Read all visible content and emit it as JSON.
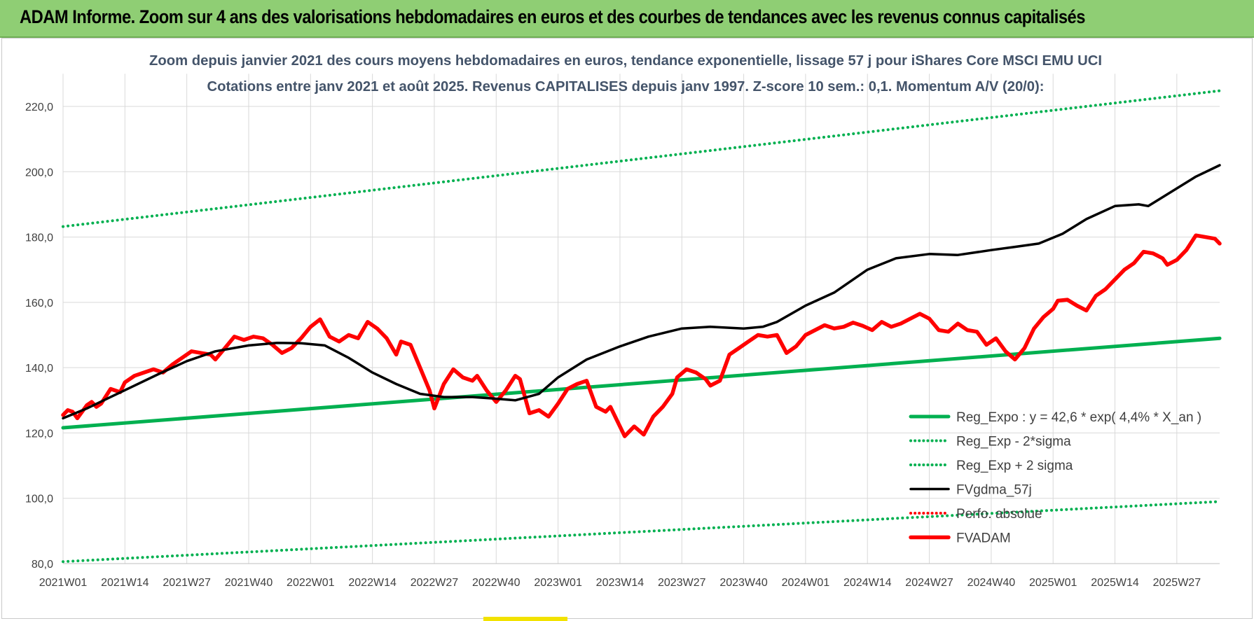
{
  "header": {
    "title": "ADAM Informe. Zoom sur 4 ans des valorisations hebdomadaires en euros et des courbes de tendances avec les revenus connus capitalisés"
  },
  "colors": {
    "header_bg": "#8fce74",
    "trend_green": "#00b050",
    "price_red": "#ff0000",
    "smooth_black": "#000000",
    "title_text": "#44546a"
  },
  "chart_data": {
    "type": "line",
    "title": "Zoom depuis janvier 2021 des cours moyens hebdomadaires en euros, tendance exponentielle, lissage 57 j pour iShares Core MSCI EMU UCI",
    "subtitle": "Cotations entre janv 2021 et août 2025. Revenus CAPITALISES depuis janv 1997. Z-score 10 sem.: 0,1. Momentum A/V (20/0):",
    "ylim": [
      80,
      230
    ],
    "yticks": [
      "80,0",
      "100,0",
      "120,0",
      "140,0",
      "160,0",
      "180,0",
      "200,0",
      "220,0"
    ],
    "ytick_values": [
      80,
      100,
      120,
      140,
      160,
      180,
      200,
      220
    ],
    "xticks": [
      "2021W01",
      "2021W14",
      "2021W27",
      "2021W40",
      "2022W01",
      "2022W14",
      "2022W27",
      "2022W40",
      "2023W01",
      "2023W14",
      "2023W27",
      "2023W40",
      "2024W01",
      "2024W14",
      "2024W27",
      "2024W40",
      "2025W01",
      "2025W14",
      "2025W27"
    ],
    "xtick_index": [
      0,
      13,
      26,
      39,
      52,
      65,
      78,
      91,
      104,
      117,
      130,
      143,
      156,
      169,
      182,
      195,
      208,
      221,
      234
    ],
    "n_weeks": 244,
    "grid": true,
    "legend_position": "bottom-right",
    "series": [
      {
        "name": "Reg_Expo : y = 42,6 * exp( 4,4% *  X_an )",
        "style": "solid-thick",
        "color": "#00b050",
        "points": [
          [
            0,
            121.6
          ],
          [
            243,
            149.0
          ]
        ]
      },
      {
        "name": "Reg_Exp - 2*sigma",
        "style": "dotted",
        "color": "#00b050",
        "points": [
          [
            0,
            80.6
          ],
          [
            243,
            99.0
          ]
        ]
      },
      {
        "name": "Reg_Exp + 2 sigma",
        "style": "dotted",
        "color": "#00b050",
        "points": [
          [
            0,
            183.2
          ],
          [
            243,
            224.8
          ]
        ]
      },
      {
        "name": "FVgdma_57j",
        "style": "solid",
        "color": "#000000",
        "points": [
          [
            0,
            124.5
          ],
          [
            5,
            127.5
          ],
          [
            10,
            131
          ],
          [
            15,
            134.5
          ],
          [
            20,
            138
          ],
          [
            26,
            142
          ],
          [
            32,
            145
          ],
          [
            39,
            146.8
          ],
          [
            45,
            147.6
          ],
          [
            50,
            147.5
          ],
          [
            55,
            146.8
          ],
          [
            60,
            143
          ],
          [
            65,
            138.5
          ],
          [
            70,
            135
          ],
          [
            75,
            132
          ],
          [
            80,
            131
          ],
          [
            86,
            131
          ],
          [
            91,
            130.5
          ],
          [
            95,
            130
          ],
          [
            100,
            132
          ],
          [
            104,
            137
          ],
          [
            110,
            142.5
          ],
          [
            117,
            146.5
          ],
          [
            123,
            149.5
          ],
          [
            130,
            152
          ],
          [
            136,
            152.5
          ],
          [
            143,
            152
          ],
          [
            147,
            152.5
          ],
          [
            150,
            154
          ],
          [
            156,
            159
          ],
          [
            162,
            163
          ],
          [
            169,
            170
          ],
          [
            175,
            173.5
          ],
          [
            182,
            174.8
          ],
          [
            188,
            174.5
          ],
          [
            195,
            176
          ],
          [
            200,
            177
          ],
          [
            205,
            178
          ],
          [
            210,
            181
          ],
          [
            215,
            185.5
          ],
          [
            221,
            189.5
          ],
          [
            226,
            190
          ],
          [
            228,
            189.5
          ],
          [
            233,
            194
          ],
          [
            238,
            198.5
          ],
          [
            243,
            202
          ]
        ]
      },
      {
        "name": "Perfo. absolue",
        "style": "dotted",
        "color": "#ff0000",
        "points": []
      },
      {
        "name": "FVADAM",
        "style": "solid-thick",
        "color": "#ff0000",
        "points": [
          [
            0,
            125.5
          ],
          [
            1,
            127
          ],
          [
            2,
            126.5
          ],
          [
            3,
            124.5
          ],
          [
            4,
            126.5
          ],
          [
            5,
            128.5
          ],
          [
            6,
            129.5
          ],
          [
            7,
            128
          ],
          [
            8,
            129
          ],
          [
            10,
            133.5
          ],
          [
            12,
            132.5
          ],
          [
            13,
            135.5
          ],
          [
            15,
            137.5
          ],
          [
            17,
            138.5
          ],
          [
            19,
            139.5
          ],
          [
            21,
            138.5
          ],
          [
            23,
            141
          ],
          [
            25,
            143
          ],
          [
            27,
            145
          ],
          [
            29,
            144.5
          ],
          [
            31,
            144
          ],
          [
            32,
            142.5
          ],
          [
            34,
            146
          ],
          [
            36,
            149.5
          ],
          [
            38,
            148.5
          ],
          [
            40,
            149.5
          ],
          [
            42,
            149
          ],
          [
            44,
            147
          ],
          [
            46,
            144.5
          ],
          [
            48,
            146
          ],
          [
            50,
            149
          ],
          [
            52,
            152.5
          ],
          [
            54,
            154.8
          ],
          [
            56,
            149.5
          ],
          [
            58,
            148
          ],
          [
            60,
            150
          ],
          [
            62,
            149
          ],
          [
            64,
            154
          ],
          [
            66,
            152
          ],
          [
            68,
            149
          ],
          [
            70,
            144
          ],
          [
            71,
            148
          ],
          [
            73,
            147
          ],
          [
            75,
            140
          ],
          [
            77,
            133
          ],
          [
            78,
            127.5
          ],
          [
            80,
            135
          ],
          [
            82,
            139.5
          ],
          [
            84,
            137
          ],
          [
            86,
            136
          ],
          [
            87,
            137.5
          ],
          [
            89,
            133
          ],
          [
            91,
            129.5
          ],
          [
            93,
            133
          ],
          [
            95,
            137.5
          ],
          [
            96,
            136.5
          ],
          [
            98,
            126
          ],
          [
            100,
            127
          ],
          [
            102,
            125
          ],
          [
            104,
            129
          ],
          [
            106,
            133.5
          ],
          [
            108,
            135
          ],
          [
            110,
            136
          ],
          [
            112,
            128
          ],
          [
            114,
            126.5
          ],
          [
            115,
            128
          ],
          [
            117,
            122
          ],
          [
            118,
            119
          ],
          [
            120,
            122
          ],
          [
            122,
            119.5
          ],
          [
            124,
            125
          ],
          [
            126,
            128
          ],
          [
            128,
            132
          ],
          [
            129,
            137
          ],
          [
            131,
            139.5
          ],
          [
            133,
            138.5
          ],
          [
            135,
            136.5
          ],
          [
            136,
            134.5
          ],
          [
            138,
            136
          ],
          [
            140,
            144
          ],
          [
            142,
            146
          ],
          [
            144,
            148
          ],
          [
            146,
            150
          ],
          [
            148,
            149.5
          ],
          [
            150,
            150
          ],
          [
            152,
            144.5
          ],
          [
            154,
            146.5
          ],
          [
            156,
            150
          ],
          [
            158,
            151.5
          ],
          [
            160,
            153
          ],
          [
            162,
            152
          ],
          [
            164,
            152.5
          ],
          [
            166,
            153.8
          ],
          [
            168,
            152.8
          ],
          [
            170,
            151.5
          ],
          [
            172,
            154
          ],
          [
            174,
            152.5
          ],
          [
            176,
            153.5
          ],
          [
            178,
            155
          ],
          [
            180,
            156.5
          ],
          [
            182,
            155
          ],
          [
            184,
            151.5
          ],
          [
            186,
            151
          ],
          [
            188,
            153.5
          ],
          [
            190,
            151.5
          ],
          [
            192,
            151
          ],
          [
            194,
            147
          ],
          [
            196,
            149
          ],
          [
            198,
            145
          ],
          [
            200,
            142.5
          ],
          [
            202,
            146
          ],
          [
            204,
            152
          ],
          [
            206,
            155.5
          ],
          [
            208,
            158
          ],
          [
            209,
            160.5
          ],
          [
            211,
            160.8
          ],
          [
            213,
            159
          ],
          [
            215,
            157.5
          ],
          [
            217,
            162
          ],
          [
            219,
            164
          ],
          [
            221,
            167
          ],
          [
            223,
            170
          ],
          [
            225,
            172
          ],
          [
            227,
            175.5
          ],
          [
            229,
            175
          ],
          [
            231,
            173.5
          ],
          [
            232,
            171.5
          ],
          [
            234,
            173
          ],
          [
            236,
            176
          ],
          [
            238,
            180.5
          ],
          [
            240,
            180
          ],
          [
            242,
            179.5
          ],
          [
            243,
            178
          ]
        ]
      }
    ]
  }
}
